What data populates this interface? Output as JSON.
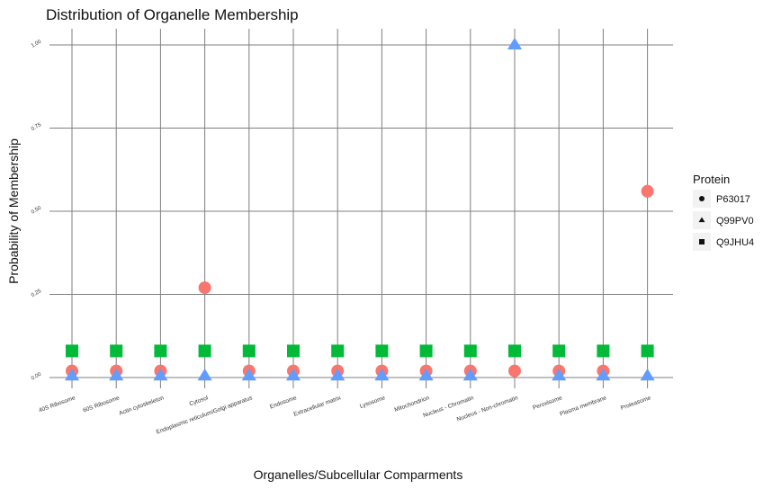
{
  "chart_data": {
    "type": "scatter",
    "title": "Distribution of Organelle Membership",
    "xlabel": "Organelles/Subcellular Comparments",
    "ylabel": "Probability of Membership",
    "categories": [
      "40S Ribosome",
      "60S Ribosome",
      "Actin cytoskeleton",
      "Cytosol",
      "Endoplasmic reticulum/Golgi apparatus",
      "Endosome",
      "Extracellular matrix",
      "Lysosome",
      "Mitochondrion",
      "Nucleus - Chromatin",
      "Nucleus - Non-chromatin",
      "Peroxisome",
      "Plasma membrane",
      "Proteasome"
    ],
    "ylim": [
      0,
      1.0
    ],
    "yticks": [
      0.0,
      0.25,
      0.5,
      0.75,
      1.0
    ],
    "ytick_labels": [
      "0.00",
      "0.25",
      "0.50",
      "0.75",
      "1.00"
    ],
    "grid": true,
    "legend_title": "Protein",
    "legend_position": "right",
    "series": [
      {
        "name": "P63017",
        "shape": "circle",
        "color": "#F8766D",
        "values": [
          0.02,
          0.02,
          0.02,
          0.27,
          0.02,
          0.02,
          0.02,
          0.02,
          0.02,
          0.02,
          0.02,
          0.02,
          0.02,
          0.56
        ]
      },
      {
        "name": "Q99PV0",
        "shape": "triangle",
        "color": "#619CFF",
        "values": [
          0.005,
          0.005,
          0.005,
          0.005,
          0.005,
          0.005,
          0.005,
          0.005,
          0.005,
          0.005,
          1.0,
          0.005,
          0.005,
          0.005
        ]
      },
      {
        "name": "Q9JHU4",
        "shape": "square",
        "color": "#00BA38",
        "values": [
          0.08,
          0.08,
          0.08,
          0.08,
          0.08,
          0.08,
          0.08,
          0.08,
          0.08,
          0.08,
          0.08,
          0.08,
          0.08,
          0.08
        ]
      }
    ]
  }
}
